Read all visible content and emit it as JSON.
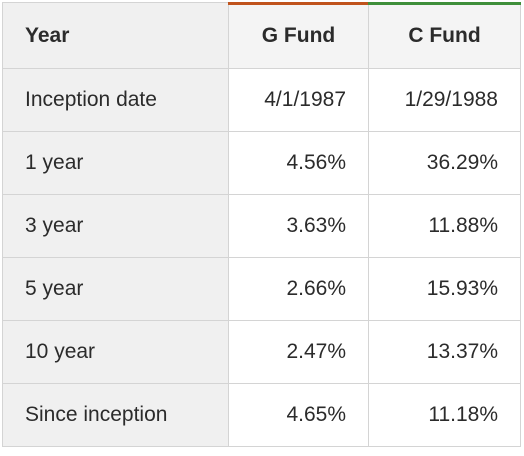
{
  "table": {
    "headers": {
      "year": "Year",
      "g_fund": "G Fund",
      "c_fund": "C Fund"
    },
    "accent_colors": {
      "g_fund": "#c0531c",
      "c_fund": "#3f8f3a"
    },
    "rows": [
      {
        "label": "Inception date",
        "g": "4/1/1987",
        "c": "1/29/1988"
      },
      {
        "label": "1 year",
        "g": "4.56%",
        "c": "36.29%"
      },
      {
        "label": "3 year",
        "g": "3.63%",
        "c": "11.88%"
      },
      {
        "label": "5 year",
        "g": "2.66%",
        "c": "15.93%"
      },
      {
        "label": "10 year",
        "g": "2.47%",
        "c": "13.37%"
      },
      {
        "label": "Since inception",
        "g": "4.65%",
        "c": "11.18%"
      }
    ]
  }
}
